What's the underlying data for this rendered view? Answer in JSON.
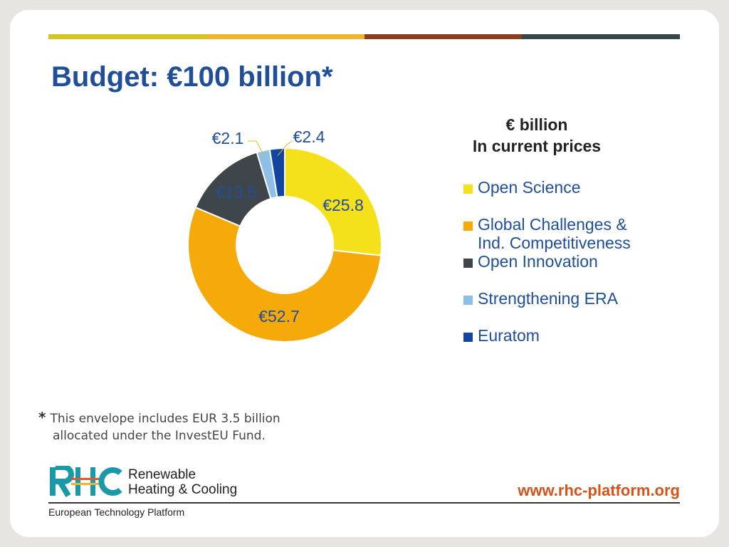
{
  "slide": {
    "title": "Budget: €100 billion*",
    "top_bar_colors": [
      "#d5c520",
      "#f1b52b",
      "#8a3d1f",
      "#36474a"
    ]
  },
  "chart_data": {
    "type": "pie",
    "donut": true,
    "title": "",
    "unit_label": [
      "€ billion",
      "In current prices"
    ],
    "series": [
      {
        "name": "Open Science",
        "value": 25.8,
        "label": "€25.8",
        "color": "#f5e11b"
      },
      {
        "name": "Global Challenges &\nInd. Competitiveness",
        "value": 52.7,
        "label": "€52.7",
        "color": "#f5aa0a"
      },
      {
        "name": "Open Innovation",
        "value": 13.5,
        "label": "€13.5",
        "color": "#3f464b"
      },
      {
        "name": "Strengthening ERA",
        "value": 2.1,
        "label": "€2.1",
        "color": "#8cc0e6"
      },
      {
        "name": "Euratom",
        "value": 2.4,
        "label": "€2.4",
        "color": "#1245a0"
      }
    ],
    "legend_position": "right"
  },
  "footnote": {
    "star": "*",
    "line1": "This envelope includes EUR 3.5 billion",
    "line2": "allocated under the InvestEU Fund."
  },
  "footer": {
    "logo_icon": "rhc-logo-icon",
    "logo_line1": "Renewable",
    "logo_line2": "Heating & Cooling",
    "subtitle": "European Technology Platform",
    "website": "www.rhc-platform.org"
  }
}
